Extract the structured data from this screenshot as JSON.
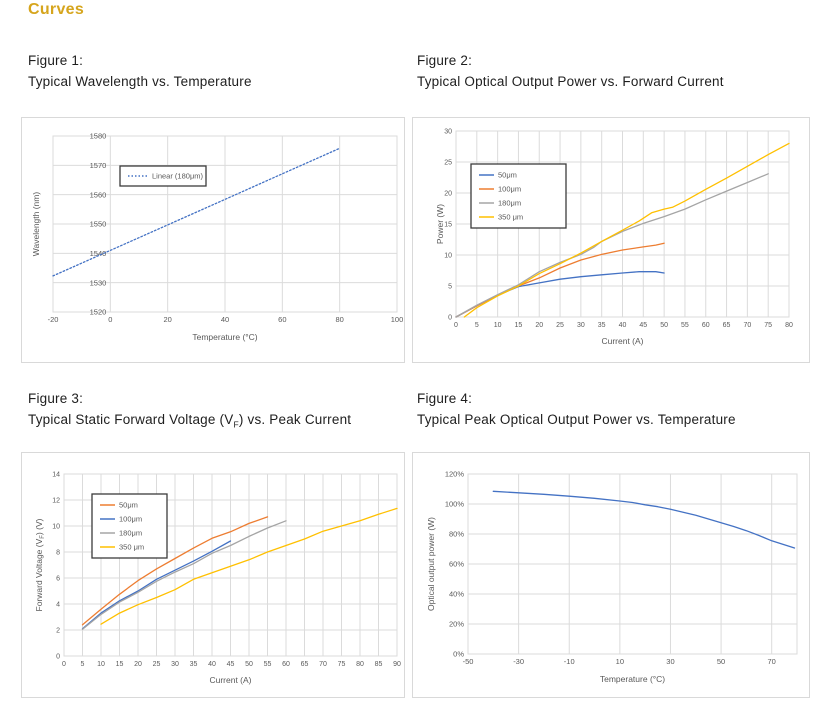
{
  "page": {
    "title": "Curves",
    "accent_color": "#D6A51D"
  },
  "figures": [
    {
      "caption_line1": "Figure 1:",
      "caption_line2": "Typical Wavelength vs. Temperature"
    },
    {
      "caption_line1": "Figure 2:",
      "caption_line2": "Typical Optical Output Power vs. Forward Current"
    },
    {
      "caption_line1": "Figure 3:",
      "caption_line2_parts": [
        {
          "t": "Typical Static Forward Voltage (V"
        },
        {
          "t": "F",
          "sub": true
        },
        {
          "t": ") vs. Peak Current"
        }
      ]
    },
    {
      "caption_line1": "Figure 4:",
      "caption_line2": "Typical Peak Optical Output Power vs. Temperature"
    }
  ],
  "chart_data": [
    {
      "type": "line",
      "xlabel": "Temperature (°C)",
      "ylabel": "Wavelength (nm)",
      "xlim": [
        -20,
        100
      ],
      "ylim": [
        1520,
        1580
      ],
      "xticks": [
        -20,
        0,
        20,
        40,
        60,
        80,
        100
      ],
      "yticks": [
        1520,
        1530,
        1540,
        1550,
        1560,
        1570,
        1580
      ],
      "yaxis_labels_at": 0,
      "grid": true,
      "legend": true,
      "series": [
        {
          "name": "Linear (180μm)",
          "color": "#4472C4",
          "dash": true,
          "points": [
            [
              -20,
              1532.3
            ],
            [
              0,
              1541.0
            ],
            [
              20,
              1549.7
            ],
            [
              40,
              1558.4
            ],
            [
              60,
              1567.1
            ],
            [
              80,
              1575.8
            ]
          ]
        }
      ]
    },
    {
      "type": "line",
      "xlabel": "Current (A)",
      "ylabel": "Power (W)",
      "xlim": [
        0,
        80
      ],
      "ylim": [
        0,
        30
      ],
      "xticks": [
        0,
        5,
        10,
        15,
        20,
        25,
        30,
        35,
        40,
        45,
        50,
        55,
        60,
        65,
        70,
        75,
        80
      ],
      "yticks": [
        0,
        5,
        10,
        15,
        20,
        25,
        30
      ],
      "grid": true,
      "legend": true,
      "series": [
        {
          "name": "50μm",
          "color": "#4472C4",
          "points": [
            [
              0,
              0
            ],
            [
              5,
              1.8
            ],
            [
              10,
              3.5
            ],
            [
              15,
              4.9
            ],
            [
              20,
              5.5
            ],
            [
              25,
              6.1
            ],
            [
              30,
              6.5
            ],
            [
              35,
              6.8
            ],
            [
              40,
              7.1
            ],
            [
              44,
              7.3
            ],
            [
              48,
              7.3
            ],
            [
              50,
              7.1
            ]
          ]
        },
        {
          "name": "100μm",
          "color": "#ED7D31",
          "points": [
            [
              0,
              0
            ],
            [
              5,
              1.8
            ],
            [
              10,
              3.5
            ],
            [
              15,
              5.0
            ],
            [
              20,
              6.3
            ],
            [
              25,
              7.9
            ],
            [
              30,
              9.2
            ],
            [
              35,
              10.1
            ],
            [
              40,
              10.8
            ],
            [
              45,
              11.3
            ],
            [
              48,
              11.6
            ],
            [
              50,
              11.9
            ]
          ]
        },
        {
          "name": "180μm",
          "color": "#A5A5A5",
          "points": [
            [
              0,
              0
            ],
            [
              5,
              1.9
            ],
            [
              10,
              3.6
            ],
            [
              15,
              5.2
            ],
            [
              20,
              7.3
            ],
            [
              25,
              8.8
            ],
            [
              30,
              10.1
            ],
            [
              33,
              11.2
            ],
            [
              35,
              12.2
            ],
            [
              40,
              13.8
            ],
            [
              45,
              15.1
            ],
            [
              50,
              16.2
            ],
            [
              55,
              17.4
            ],
            [
              60,
              18.9
            ],
            [
              65,
              20.3
            ],
            [
              70,
              21.7
            ],
            [
              75,
              23.1
            ]
          ]
        },
        {
          "name": "350 μm",
          "color": "#FFC000",
          "points": [
            [
              2,
              0
            ],
            [
              5,
              1.5
            ],
            [
              10,
              3.4
            ],
            [
              15,
              5.0
            ],
            [
              20,
              7.0
            ],
            [
              25,
              8.6
            ],
            [
              30,
              10.3
            ],
            [
              35,
              12.2
            ],
            [
              40,
              14.0
            ],
            [
              44,
              15.5
            ],
            [
              47,
              16.8
            ],
            [
              50,
              17.4
            ],
            [
              52,
              17.7
            ],
            [
              55,
              18.7
            ],
            [
              60,
              20.6
            ],
            [
              65,
              22.4
            ],
            [
              70,
              24.3
            ],
            [
              75,
              26.2
            ],
            [
              80,
              28.0
            ]
          ]
        }
      ]
    },
    {
      "type": "line",
      "xlabel": "Current (A)",
      "ylabel_parts": [
        {
          "t": "Forward Voltage  (V"
        },
        {
          "t": "F",
          "sub": true
        },
        {
          "t": ") (V)"
        }
      ],
      "xlim": [
        0,
        90
      ],
      "ylim": [
        0,
        14
      ],
      "xticks": [
        0,
        5,
        10,
        15,
        20,
        25,
        30,
        35,
        40,
        45,
        50,
        55,
        60,
        65,
        70,
        75,
        80,
        85,
        90
      ],
      "yticks": [
        0,
        2,
        4,
        6,
        8,
        10,
        12,
        14
      ],
      "grid": true,
      "legend": true,
      "series": [
        {
          "name": "50μm",
          "color": "#ED7D31",
          "points": [
            [
              5,
              2.4
            ],
            [
              10,
              3.6
            ],
            [
              15,
              4.75
            ],
            [
              20,
              5.8
            ],
            [
              25,
              6.7
            ],
            [
              30,
              7.5
            ],
            [
              35,
              8.3
            ],
            [
              40,
              9.05
            ],
            [
              45,
              9.55
            ],
            [
              50,
              10.2
            ],
            [
              55,
              10.7
            ]
          ]
        },
        {
          "name": "100μm",
          "color": "#4472C4",
          "points": [
            [
              5,
              2.1
            ],
            [
              10,
              3.3
            ],
            [
              15,
              4.25
            ],
            [
              20,
              5.0
            ],
            [
              25,
              5.9
            ],
            [
              30,
              6.6
            ],
            [
              35,
              7.3
            ],
            [
              40,
              8.05
            ],
            [
              45,
              8.85
            ]
          ]
        },
        {
          "name": "180μm",
          "color": "#A5A5A5",
          "points": [
            [
              5,
              2.05
            ],
            [
              10,
              3.2
            ],
            [
              15,
              4.15
            ],
            [
              20,
              4.9
            ],
            [
              25,
              5.75
            ],
            [
              30,
              6.45
            ],
            [
              35,
              7.1
            ],
            [
              40,
              7.9
            ],
            [
              45,
              8.5
            ],
            [
              50,
              9.2
            ],
            [
              55,
              9.85
            ],
            [
              60,
              10.4
            ]
          ]
        },
        {
          "name": "350 μm",
          "color": "#FFC000",
          "points": [
            [
              10,
              2.45
            ],
            [
              15,
              3.3
            ],
            [
              20,
              3.95
            ],
            [
              25,
              4.5
            ],
            [
              30,
              5.1
            ],
            [
              35,
              5.9
            ],
            [
              40,
              6.4
            ],
            [
              45,
              6.9
            ],
            [
              50,
              7.4
            ],
            [
              55,
              8.0
            ],
            [
              60,
              8.5
            ],
            [
              65,
              9.0
            ],
            [
              70,
              9.6
            ],
            [
              75,
              10.0
            ],
            [
              80,
              10.4
            ],
            [
              85,
              10.9
            ],
            [
              90,
              11.35
            ]
          ]
        }
      ]
    },
    {
      "type": "line",
      "xlabel": "Temperature (°C)",
      "ylabel": "Optical output power (W)",
      "xlim": [
        -50,
        80
      ],
      "ylim": [
        0,
        1.2
      ],
      "xticks": [
        -50,
        -30,
        -10,
        10,
        30,
        50,
        70
      ],
      "yticks": [
        0,
        0.2,
        0.4,
        0.6,
        0.8,
        1.0,
        1.2
      ],
      "ytick_labels": [
        "0%",
        "20%",
        "40%",
        "60%",
        "80%",
        "100%",
        "120%"
      ],
      "grid": true,
      "legend": false,
      "series": [
        {
          "color": "#4472C4",
          "points": [
            [
              -40,
              1.085
            ],
            [
              -30,
              1.075
            ],
            [
              -20,
              1.065
            ],
            [
              -10,
              1.052
            ],
            [
              0,
              1.038
            ],
            [
              10,
              1.02
            ],
            [
              15,
              1.01
            ],
            [
              20,
              0.995
            ],
            [
              25,
              0.982
            ],
            [
              30,
              0.965
            ],
            [
              35,
              0.945
            ],
            [
              40,
              0.925
            ],
            [
              45,
              0.9
            ],
            [
              50,
              0.875
            ],
            [
              55,
              0.85
            ],
            [
              60,
              0.822
            ],
            [
              65,
              0.79
            ],
            [
              70,
              0.755
            ],
            [
              75,
              0.728
            ],
            [
              79,
              0.707
            ]
          ]
        }
      ]
    }
  ]
}
